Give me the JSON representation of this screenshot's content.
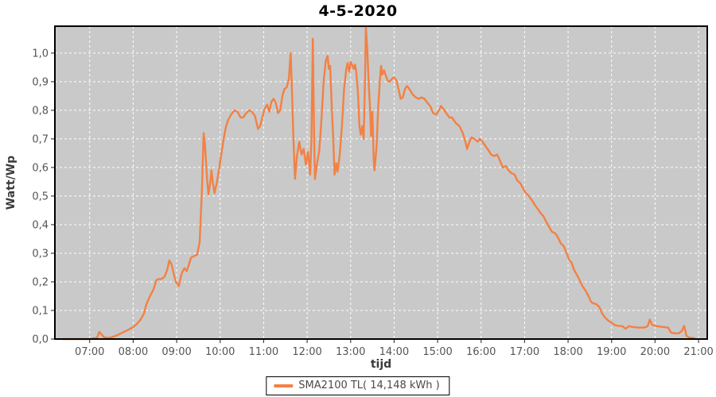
{
  "header": {
    "title": "4-5-2020"
  },
  "legend": {
    "label": "SMA2100 TL( 14,148 kWh )"
  },
  "chart_data": {
    "type": "line",
    "title": "4-5-2020",
    "xlabel": "tijd",
    "ylabel": "Watt/Wp",
    "xlim": [
      6.2,
      21.2
    ],
    "ylim": [
      0,
      1.094
    ],
    "grid": true,
    "grid_style": "white dashed on gray plot background",
    "legend_position": "bottom-center",
    "colors": {
      "series": "#F28144",
      "plot_bg": "#C9C9C9",
      "grid": "#FFFFFF",
      "axis_border": "#000000",
      "tick": "#444444",
      "tick_label": "#555555"
    },
    "xticks": [
      {
        "v": 7,
        "label": "07:00"
      },
      {
        "v": 8,
        "label": "08:00"
      },
      {
        "v": 9,
        "label": "09:00"
      },
      {
        "v": 10,
        "label": "10:00"
      },
      {
        "v": 11,
        "label": "11:00"
      },
      {
        "v": 12,
        "label": "12:00"
      },
      {
        "v": 13,
        "label": "13:00"
      },
      {
        "v": 14,
        "label": "14:00"
      },
      {
        "v": 15,
        "label": "15:00"
      },
      {
        "v": 16,
        "label": "16:00"
      },
      {
        "v": 17,
        "label": "17:00"
      },
      {
        "v": 18,
        "label": "18:00"
      },
      {
        "v": 19,
        "label": "19:00"
      },
      {
        "v": 20,
        "label": "20:00"
      },
      {
        "v": 21,
        "label": "21:00"
      }
    ],
    "yticks": [
      {
        "v": 0.0,
        "label": "0,0"
      },
      {
        "v": 0.1,
        "label": "0,1"
      },
      {
        "v": 0.2,
        "label": "0,2"
      },
      {
        "v": 0.3,
        "label": "0,3"
      },
      {
        "v": 0.4,
        "label": "0,4"
      },
      {
        "v": 0.5,
        "label": "0,5"
      },
      {
        "v": 0.6,
        "label": "0,6"
      },
      {
        "v": 0.7,
        "label": "0,7"
      },
      {
        "v": 0.8,
        "label": "0,8"
      },
      {
        "v": 0.9,
        "label": "0,9"
      },
      {
        "v": 1.0,
        "label": "1,0"
      }
    ],
    "series": [
      {
        "name": "SMA2100 TL( 14,148 kWh )",
        "color": "#F28144",
        "x_unit": "hours (decimal)",
        "y_unit": "Watt/Wp",
        "points": [
          [
            6.37,
            0
          ],
          [
            6.6,
            0
          ],
          [
            6.8,
            0
          ],
          [
            7.0,
            0
          ],
          [
            7.1,
            0.003
          ],
          [
            7.17,
            0.005
          ],
          [
            7.22,
            0.025
          ],
          [
            7.28,
            0.015
          ],
          [
            7.33,
            0.006
          ],
          [
            7.42,
            0.004
          ],
          [
            7.5,
            0.006
          ],
          [
            7.58,
            0.01
          ],
          [
            7.67,
            0.016
          ],
          [
            7.75,
            0.022
          ],
          [
            7.83,
            0.028
          ],
          [
            7.92,
            0.035
          ],
          [
            8.0,
            0.042
          ],
          [
            8.08,
            0.052
          ],
          [
            8.17,
            0.068
          ],
          [
            8.25,
            0.09
          ],
          [
            8.3,
            0.12
          ],
          [
            8.37,
            0.145
          ],
          [
            8.42,
            0.16
          ],
          [
            8.47,
            0.175
          ],
          [
            8.53,
            0.205
          ],
          [
            8.58,
            0.21
          ],
          [
            8.65,
            0.21
          ],
          [
            8.72,
            0.218
          ],
          [
            8.78,
            0.24
          ],
          [
            8.83,
            0.275
          ],
          [
            8.88,
            0.262
          ],
          [
            8.93,
            0.23
          ],
          [
            8.98,
            0.2
          ],
          [
            9.05,
            0.185
          ],
          [
            9.1,
            0.22
          ],
          [
            9.13,
            0.235
          ],
          [
            9.18,
            0.248
          ],
          [
            9.23,
            0.237
          ],
          [
            9.28,
            0.26
          ],
          [
            9.33,
            0.285
          ],
          [
            9.4,
            0.29
          ],
          [
            9.47,
            0.295
          ],
          [
            9.53,
            0.34
          ],
          [
            9.58,
            0.52
          ],
          [
            9.62,
            0.72
          ],
          [
            9.65,
            0.68
          ],
          [
            9.7,
            0.56
          ],
          [
            9.73,
            0.505
          ],
          [
            9.77,
            0.545
          ],
          [
            9.8,
            0.59
          ],
          [
            9.83,
            0.55
          ],
          [
            9.87,
            0.51
          ],
          [
            9.92,
            0.545
          ],
          [
            9.97,
            0.59
          ],
          [
            10.03,
            0.65
          ],
          [
            10.08,
            0.7
          ],
          [
            10.13,
            0.74
          ],
          [
            10.18,
            0.765
          ],
          [
            10.25,
            0.785
          ],
          [
            10.33,
            0.8
          ],
          [
            10.4,
            0.795
          ],
          [
            10.47,
            0.775
          ],
          [
            10.53,
            0.775
          ],
          [
            10.6,
            0.79
          ],
          [
            10.67,
            0.8
          ],
          [
            10.73,
            0.795
          ],
          [
            10.8,
            0.78
          ],
          [
            10.87,
            0.735
          ],
          [
            10.92,
            0.745
          ],
          [
            10.97,
            0.775
          ],
          [
            11.02,
            0.805
          ],
          [
            11.08,
            0.82
          ],
          [
            11.13,
            0.795
          ],
          [
            11.18,
            0.83
          ],
          [
            11.23,
            0.84
          ],
          [
            11.28,
            0.825
          ],
          [
            11.33,
            0.79
          ],
          [
            11.38,
            0.8
          ],
          [
            11.43,
            0.85
          ],
          [
            11.48,
            0.875
          ],
          [
            11.53,
            0.88
          ],
          [
            11.58,
            0.91
          ],
          [
            11.62,
            1.0
          ],
          [
            11.65,
            0.88
          ],
          [
            11.68,
            0.72
          ],
          [
            11.72,
            0.56
          ],
          [
            11.77,
            0.645
          ],
          [
            11.82,
            0.69
          ],
          [
            11.87,
            0.645
          ],
          [
            11.92,
            0.665
          ],
          [
            11.97,
            0.61
          ],
          [
            12.02,
            0.655
          ],
          [
            12.07,
            0.575
          ],
          [
            12.1,
            0.7
          ],
          [
            12.13,
            1.05
          ],
          [
            12.16,
            0.72
          ],
          [
            12.18,
            0.56
          ],
          [
            12.23,
            0.615
          ],
          [
            12.28,
            0.66
          ],
          [
            12.33,
            0.77
          ],
          [
            12.38,
            0.9
          ],
          [
            12.43,
            0.975
          ],
          [
            12.47,
            0.99
          ],
          [
            12.5,
            0.945
          ],
          [
            12.53,
            0.955
          ],
          [
            12.57,
            0.8
          ],
          [
            12.6,
            0.7
          ],
          [
            12.63,
            0.575
          ],
          [
            12.67,
            0.615
          ],
          [
            12.7,
            0.585
          ],
          [
            12.75,
            0.645
          ],
          [
            12.8,
            0.745
          ],
          [
            12.85,
            0.875
          ],
          [
            12.9,
            0.945
          ],
          [
            12.93,
            0.965
          ],
          [
            12.97,
            0.935
          ],
          [
            13.0,
            0.97
          ],
          [
            13.03,
            0.96
          ],
          [
            13.07,
            0.945
          ],
          [
            13.1,
            0.96
          ],
          [
            13.13,
            0.935
          ],
          [
            13.17,
            0.86
          ],
          [
            13.2,
            0.75
          ],
          [
            13.23,
            0.715
          ],
          [
            13.27,
            0.745
          ],
          [
            13.3,
            0.7
          ],
          [
            13.33,
            0.9
          ],
          [
            13.35,
            1.09
          ],
          [
            13.38,
            1.02
          ],
          [
            13.42,
            0.88
          ],
          [
            13.45,
            0.8
          ],
          [
            13.47,
            0.71
          ],
          [
            13.5,
            0.795
          ],
          [
            13.53,
            0.63
          ],
          [
            13.55,
            0.59
          ],
          [
            13.6,
            0.68
          ],
          [
            13.63,
            0.8
          ],
          [
            13.67,
            0.9
          ],
          [
            13.7,
            0.955
          ],
          [
            13.73,
            0.925
          ],
          [
            13.77,
            0.94
          ],
          [
            13.8,
            0.925
          ],
          [
            13.85,
            0.905
          ],
          [
            13.9,
            0.9
          ],
          [
            13.95,
            0.91
          ],
          [
            14.0,
            0.915
          ],
          [
            14.05,
            0.905
          ],
          [
            14.1,
            0.875
          ],
          [
            14.15,
            0.84
          ],
          [
            14.2,
            0.845
          ],
          [
            14.25,
            0.875
          ],
          [
            14.3,
            0.885
          ],
          [
            14.37,
            0.87
          ],
          [
            14.43,
            0.855
          ],
          [
            14.5,
            0.845
          ],
          [
            14.57,
            0.84
          ],
          [
            14.63,
            0.845
          ],
          [
            14.7,
            0.84
          ],
          [
            14.77,
            0.825
          ],
          [
            14.83,
            0.815
          ],
          [
            14.9,
            0.79
          ],
          [
            14.97,
            0.785
          ],
          [
            15.03,
            0.8
          ],
          [
            15.08,
            0.815
          ],
          [
            15.13,
            0.805
          ],
          [
            15.2,
            0.79
          ],
          [
            15.27,
            0.775
          ],
          [
            15.33,
            0.775
          ],
          [
            15.42,
            0.755
          ],
          [
            15.5,
            0.745
          ],
          [
            15.58,
            0.72
          ],
          [
            15.63,
            0.695
          ],
          [
            15.68,
            0.665
          ],
          [
            15.73,
            0.69
          ],
          [
            15.78,
            0.705
          ],
          [
            15.85,
            0.7
          ],
          [
            15.92,
            0.69
          ],
          [
            15.97,
            0.7
          ],
          [
            16.03,
            0.69
          ],
          [
            16.1,
            0.675
          ],
          [
            16.17,
            0.66
          ],
          [
            16.23,
            0.645
          ],
          [
            16.3,
            0.64
          ],
          [
            16.37,
            0.645
          ],
          [
            16.43,
            0.625
          ],
          [
            16.5,
            0.6
          ],
          [
            16.57,
            0.605
          ],
          [
            16.63,
            0.59
          ],
          [
            16.7,
            0.58
          ],
          [
            16.77,
            0.575
          ],
          [
            16.83,
            0.555
          ],
          [
            16.9,
            0.545
          ],
          [
            16.97,
            0.525
          ],
          [
            17.03,
            0.51
          ],
          [
            17.1,
            0.5
          ],
          [
            17.17,
            0.485
          ],
          [
            17.23,
            0.47
          ],
          [
            17.3,
            0.455
          ],
          [
            17.37,
            0.44
          ],
          [
            17.43,
            0.43
          ],
          [
            17.5,
            0.41
          ],
          [
            17.57,
            0.39
          ],
          [
            17.63,
            0.375
          ],
          [
            17.7,
            0.37
          ],
          [
            17.77,
            0.355
          ],
          [
            17.83,
            0.335
          ],
          [
            17.9,
            0.325
          ],
          [
            17.97,
            0.3
          ],
          [
            18.03,
            0.275
          ],
          [
            18.08,
            0.268
          ],
          [
            18.13,
            0.245
          ],
          [
            18.2,
            0.225
          ],
          [
            18.27,
            0.205
          ],
          [
            18.33,
            0.185
          ],
          [
            18.4,
            0.17
          ],
          [
            18.47,
            0.15
          ],
          [
            18.53,
            0.13
          ],
          [
            18.58,
            0.125
          ],
          [
            18.65,
            0.122
          ],
          [
            18.72,
            0.112
          ],
          [
            18.78,
            0.09
          ],
          [
            18.85,
            0.075
          ],
          [
            18.92,
            0.065
          ],
          [
            19.0,
            0.057
          ],
          [
            19.08,
            0.048
          ],
          [
            19.17,
            0.046
          ],
          [
            19.25,
            0.045
          ],
          [
            19.32,
            0.036
          ],
          [
            19.4,
            0.045
          ],
          [
            19.5,
            0.042
          ],
          [
            19.62,
            0.04
          ],
          [
            19.75,
            0.04
          ],
          [
            19.83,
            0.045
          ],
          [
            19.88,
            0.068
          ],
          [
            19.93,
            0.05
          ],
          [
            20.0,
            0.046
          ],
          [
            20.1,
            0.044
          ],
          [
            20.2,
            0.042
          ],
          [
            20.3,
            0.04
          ],
          [
            20.37,
            0.022
          ],
          [
            20.47,
            0.02
          ],
          [
            20.55,
            0.02
          ],
          [
            20.62,
            0.03
          ],
          [
            20.67,
            0.046
          ],
          [
            20.72,
            0.012
          ],
          [
            20.78,
            0.005
          ],
          [
            20.85,
            0.004
          ],
          [
            20.9,
            0.003
          ]
        ]
      }
    ]
  }
}
